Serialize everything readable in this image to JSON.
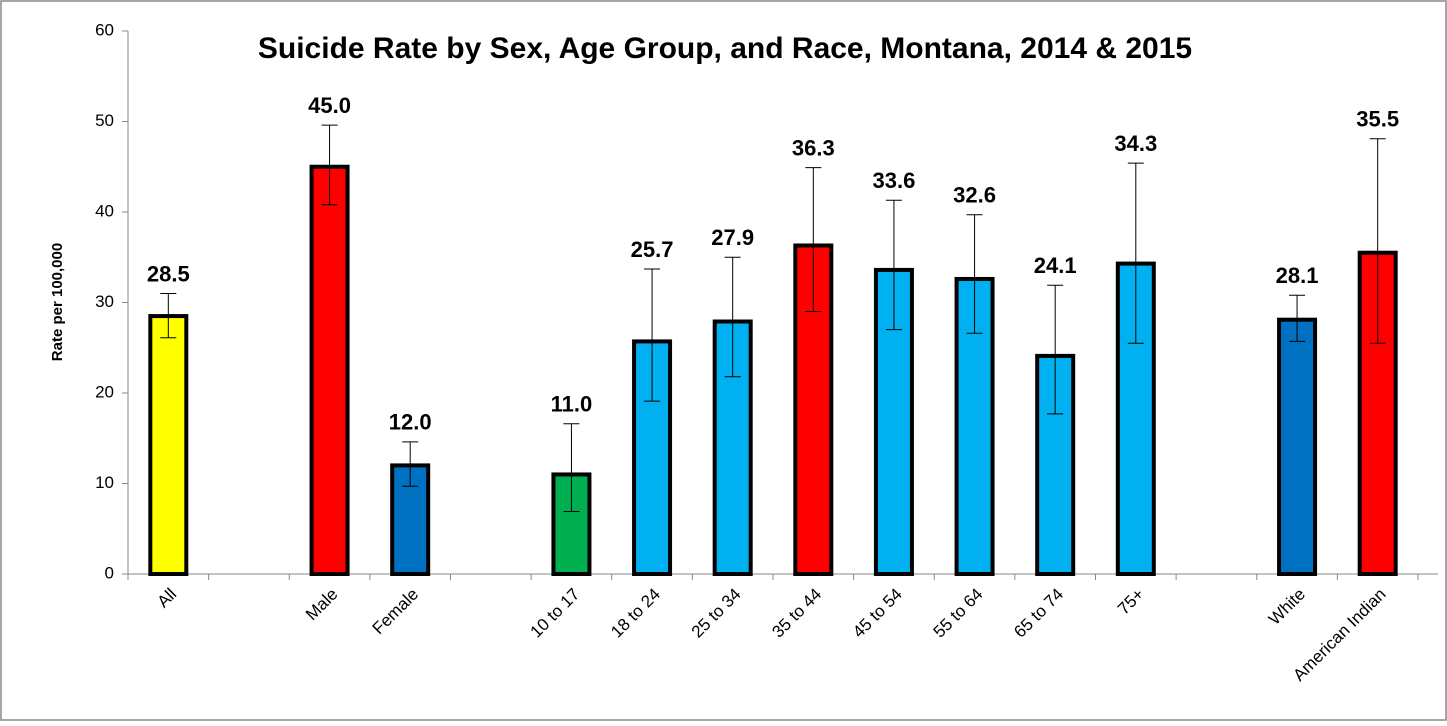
{
  "chart_data": {
    "type": "bar",
    "title": "Suicide Rate by Sex, Age Group, and Race, Montana, 2014 & 2015",
    "y_label": "Rate per 100,000",
    "categories": [
      "All",
      null,
      "Male",
      "Female",
      null,
      "10 to 17",
      "18 to 24",
      "25 to 34",
      "35 to 44",
      "45 to 54",
      "55 to 64",
      "65 to 74",
      "75+",
      null,
      "White",
      "American Indian"
    ],
    "values": [
      28.5,
      null,
      45.0,
      12.0,
      null,
      11.0,
      25.7,
      27.9,
      36.3,
      33.6,
      32.6,
      24.1,
      34.3,
      null,
      28.1,
      35.5
    ],
    "value_labels": [
      "28.5",
      null,
      "45.0",
      "12.0",
      null,
      "11.0",
      "25.7",
      "27.9",
      "36.3",
      "33.6",
      "32.6",
      "24.1",
      "34.3",
      null,
      "28.1",
      "35.5"
    ],
    "error_low": [
      26.1,
      null,
      40.8,
      9.7,
      null,
      6.9,
      19.1,
      21.8,
      29.0,
      27.0,
      26.6,
      17.7,
      25.5,
      null,
      25.7,
      25.5
    ],
    "error_high": [
      31.0,
      null,
      49.6,
      14.6,
      null,
      16.6,
      33.7,
      35.0,
      44.9,
      41.3,
      39.7,
      31.9,
      45.4,
      null,
      30.8,
      48.1
    ],
    "colors": [
      "#ffff00",
      null,
      "#ff0000",
      "#0070c0",
      null,
      "#00b050",
      "#00b0f0",
      "#00b0f0",
      "#ff0000",
      "#00b0f0",
      "#00b0f0",
      "#00b0f0",
      "#00b0f0",
      null,
      "#0070c0",
      "#ff0000"
    ],
    "ylim": [
      0,
      60
    ],
    "yticks": [
      0,
      10,
      20,
      30,
      40,
      50,
      60
    ]
  }
}
